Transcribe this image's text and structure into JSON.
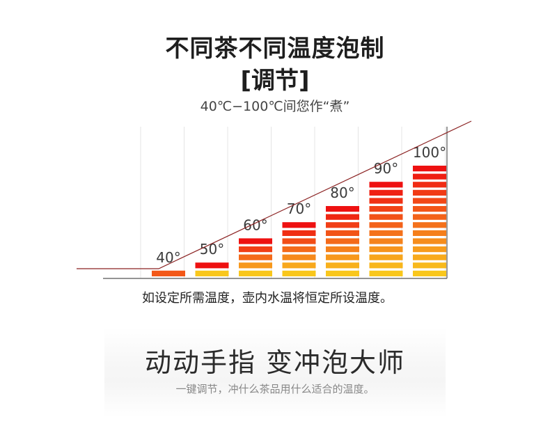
{
  "header": {
    "title_line1": "不同茶不同温度泡制",
    "title_line2": "[调节]",
    "range_text": "40℃−100℃间您作“煮”"
  },
  "chart_data": {
    "type": "bar",
    "categories": [
      "40°",
      "50°",
      "60°",
      "70°",
      "80°",
      "90°",
      "100°"
    ],
    "values": [
      40,
      50,
      60,
      70,
      80,
      90,
      100
    ],
    "segments": [
      1,
      2,
      5,
      7,
      9,
      12,
      14
    ],
    "ylim": [
      30,
      100
    ],
    "title": "",
    "xlabel": "",
    "ylabel": "",
    "grid": true,
    "colors": {
      "top": "#ee1111",
      "middle": "#f57a1c",
      "bottom": "#fbe81c",
      "trend_line": "#8b2222",
      "grid": "#e4e4e4",
      "axis": "#555555"
    }
  },
  "caption": "如设定所需温度，壶内水温将恒定所设温度。",
  "footer": {
    "slogan": "动动手指 变冲泡大师",
    "subtitle": "一键调节，冲什么茶品用什么适合的温度。"
  }
}
